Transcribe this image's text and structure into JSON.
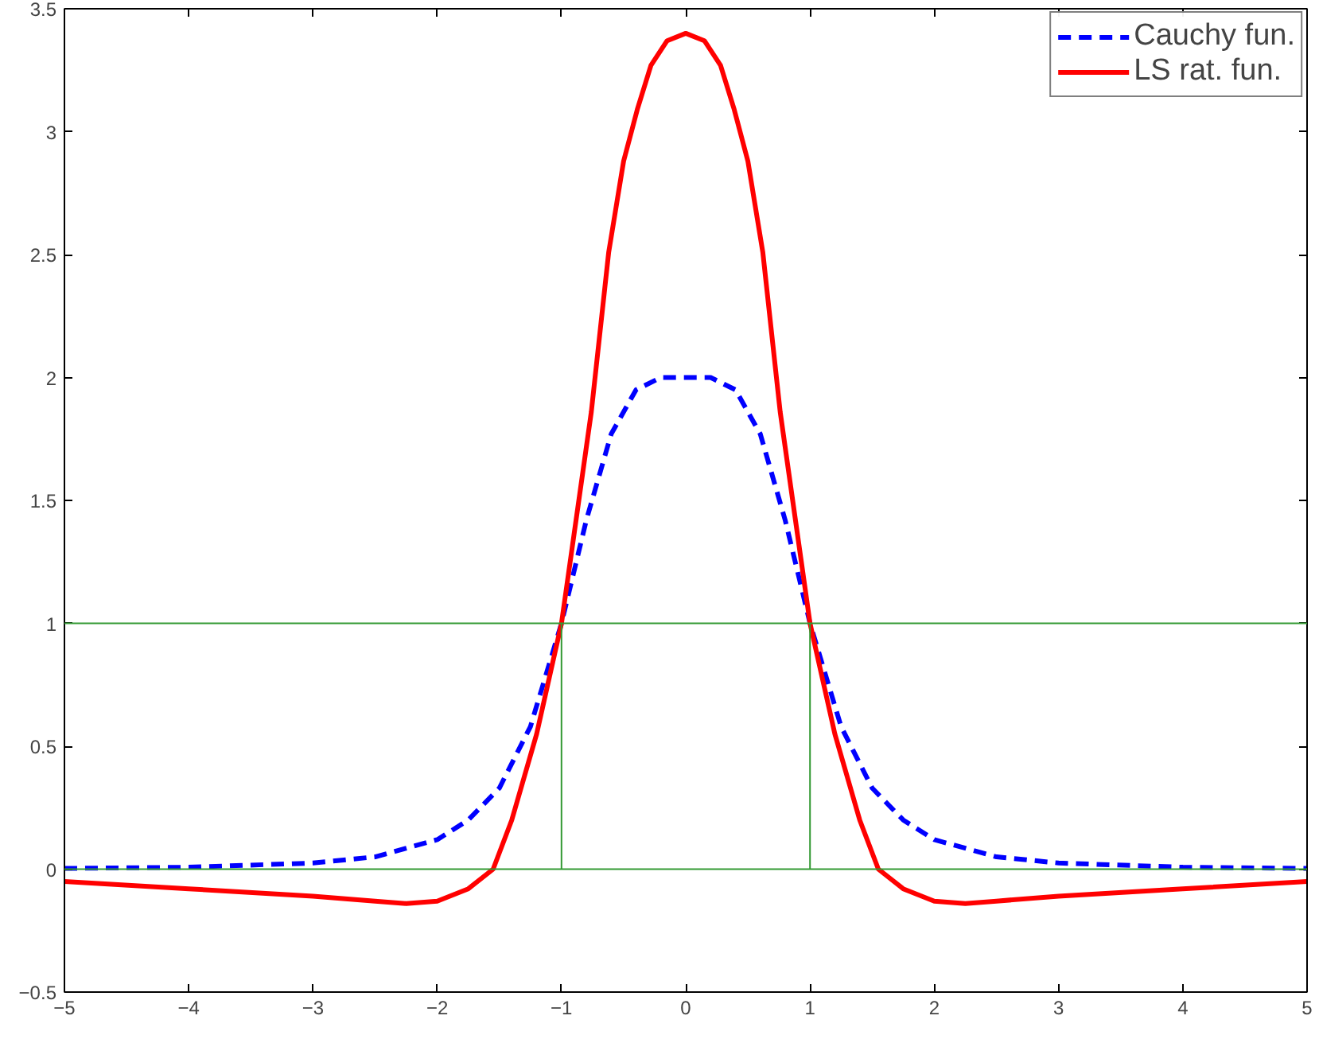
{
  "chart_data": {
    "type": "line",
    "xlim": [
      -5,
      5
    ],
    "ylim": [
      -0.5,
      3.5
    ],
    "xticks": [
      -5,
      -4,
      -3,
      -2,
      -1,
      0,
      1,
      2,
      3,
      4,
      5
    ],
    "yticks": [
      -0.5,
      0,
      0.5,
      1,
      1.5,
      2,
      2.5,
      3,
      3.5
    ],
    "grid": false,
    "legend": "top right",
    "ref_lines": [
      {
        "axis": "y",
        "value": 0,
        "color": "#339933"
      },
      {
        "axis": "y",
        "value": 1,
        "color": "#339933"
      }
    ],
    "series": [
      {
        "name": "Cauchy fun.",
        "color": "#0000ff",
        "line_style": "dashed",
        "x": [
          -5,
          -4,
          -3,
          -2.5,
          -2,
          -1.75,
          -1.5,
          -1.25,
          -1,
          -0.8,
          -0.6,
          -0.4,
          -0.2,
          0,
          0.2,
          0.4,
          0.6,
          0.8,
          1,
          1.25,
          1.5,
          1.75,
          2,
          2.5,
          3,
          4,
          5
        ],
        "values": [
          0.003,
          0.008,
          0.025,
          0.05,
          0.12,
          0.2,
          0.33,
          0.58,
          1,
          1.42,
          1.77,
          1.95,
          2.0,
          2.0,
          2.0,
          1.95,
          1.77,
          1.42,
          1,
          0.58,
          0.33,
          0.2,
          0.12,
          0.05,
          0.025,
          0.008,
          0.003
        ]
      },
      {
        "name": "LS rat. fun.",
        "color": "#ff0000",
        "line_style": "solid",
        "x": [
          -5,
          -4,
          -3,
          -2.5,
          -2.25,
          -2,
          -1.75,
          -1.55,
          -1.4,
          -1.2,
          -1,
          -0.76,
          -0.62,
          -0.5,
          -0.39,
          -0.28,
          -0.15,
          0,
          0.15,
          0.28,
          0.39,
          0.5,
          0.62,
          0.76,
          1,
          1.2,
          1.4,
          1.55,
          1.75,
          2,
          2.25,
          2.5,
          3,
          4,
          5
        ],
        "values": [
          -0.05,
          -0.08,
          -0.11,
          -0.13,
          -0.14,
          -0.13,
          -0.08,
          0,
          0.2,
          0.55,
          1,
          1.86,
          2.51,
          2.88,
          3.09,
          3.27,
          3.37,
          3.4,
          3.37,
          3.27,
          3.09,
          2.88,
          2.51,
          1.86,
          1,
          0.55,
          0.2,
          0,
          -0.08,
          -0.13,
          -0.14,
          -0.13,
          -0.11,
          -0.08,
          -0.05
        ]
      },
      {
        "color": "#339933",
        "line_style": "solid",
        "x": [
          -1,
          -1
        ],
        "values": [
          0,
          1
        ]
      },
      {
        "color": "#339933",
        "line_style": "solid",
        "x": [
          1,
          1
        ],
        "values": [
          0,
          1
        ]
      }
    ]
  }
}
